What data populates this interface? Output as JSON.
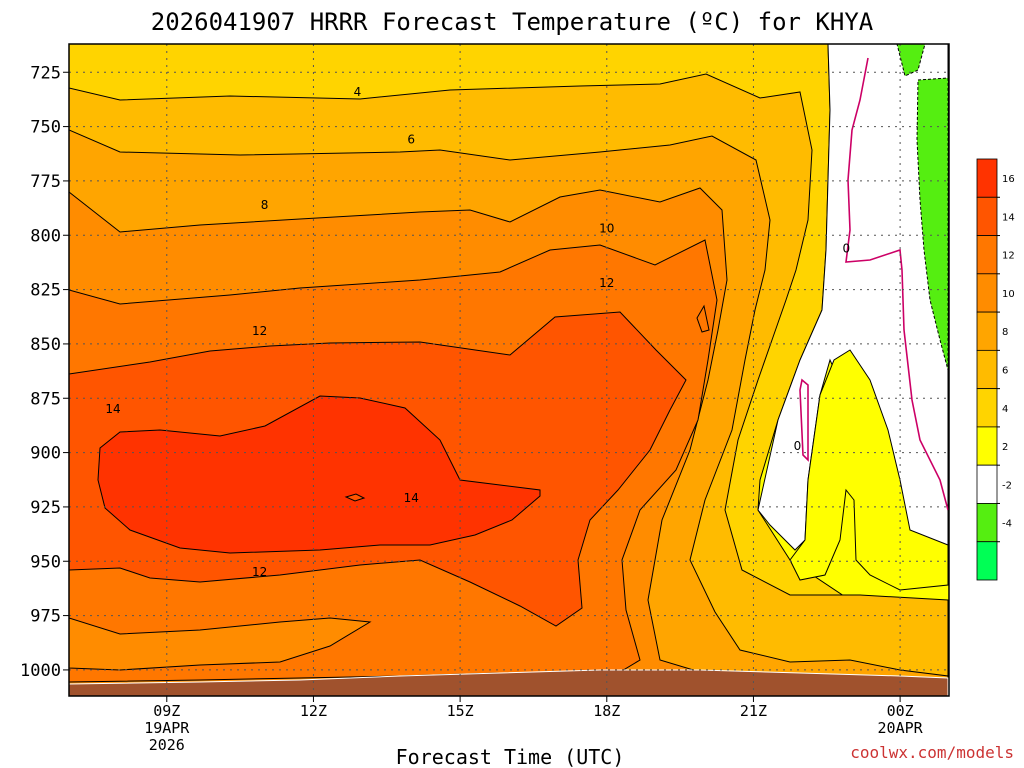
{
  "chart_data": {
    "type": "contour",
    "title": "2026041907 HRRR Forecast Temperature (ºC) for KHYA",
    "xlabel": "Forecast Time (UTC)",
    "ylabel": "",
    "y_ticks": [
      725,
      750,
      775,
      800,
      825,
      850,
      875,
      900,
      925,
      950,
      975,
      1000
    ],
    "y_range": [
      712,
      1012
    ],
    "y_unit": "hPa",
    "x_ticks": [
      {
        "hour": 9,
        "label": "09Z",
        "sub1": "19APR",
        "sub2": "2026"
      },
      {
        "hour": 12,
        "label": "12Z",
        "sub1": "",
        "sub2": ""
      },
      {
        "hour": 15,
        "label": "15Z",
        "sub1": "",
        "sub2": ""
      },
      {
        "hour": 18,
        "label": "18Z",
        "sub1": "",
        "sub2": ""
      },
      {
        "hour": 21,
        "label": "21Z",
        "sub1": "",
        "sub2": ""
      },
      {
        "hour": 24,
        "label": "00Z",
        "sub1": "20APR",
        "sub2": ""
      }
    ],
    "x_range_hours": [
      7,
      25
    ],
    "grid": true,
    "colorbar": {
      "position": "right",
      "levels": [
        {
          "label": "16",
          "color": "#ff3300"
        },
        {
          "label": "14",
          "color": "#ff5500"
        },
        {
          "label": "12",
          "color": "#ff7700"
        },
        {
          "label": "10",
          "color": "#ff8c00"
        },
        {
          "label": "8",
          "color": "#ffa500"
        },
        {
          "label": "6",
          "color": "#ffbb00"
        },
        {
          "label": "4",
          "color": "#ffd400"
        },
        {
          "label": "2",
          "color": "#ffff00"
        },
        {
          "label": "-2",
          "color": "#ffffff"
        },
        {
          "label": "-4",
          "color": "#55ee11"
        },
        {
          "label": "",
          "color": "#00ff55"
        }
      ]
    },
    "contour_labels": [
      {
        "text": "4",
        "hour": 12.9,
        "p": 734
      },
      {
        "text": "6",
        "hour": 14.0,
        "p": 756
      },
      {
        "text": "8",
        "hour": 11.0,
        "p": 786
      },
      {
        "text": "10",
        "hour": 18.0,
        "p": 797
      },
      {
        "text": "12",
        "hour": 18.0,
        "p": 822
      },
      {
        "text": "12",
        "hour": 10.9,
        "p": 844
      },
      {
        "text": "14",
        "hour": 7.9,
        "p": 880
      },
      {
        "text": "14",
        "hour": 14.0,
        "p": 921
      },
      {
        "text": "12",
        "hour": 10.9,
        "p": 955
      },
      {
        "text": "0",
        "hour": 22.9,
        "p": 806
      },
      {
        "text": "0",
        "hour": 21.9,
        "p": 897
      }
    ],
    "ground_color": "#a0522d"
  },
  "credit": "coolwx.com/models",
  "colors": {
    "c18": "#ff3300",
    "c16": "#ff5500",
    "c14": "#ff7700",
    "c12": "#ff8c00",
    "c10": "#ffa500",
    "c8": "#ffbb00",
    "c6": "#ffd400",
    "c4": "#ffff00",
    "c_neg2": "#55ee11",
    "c_neg4": "#00ff55",
    "zero_line": "#cc0066",
    "credit": "#cc3333"
  }
}
